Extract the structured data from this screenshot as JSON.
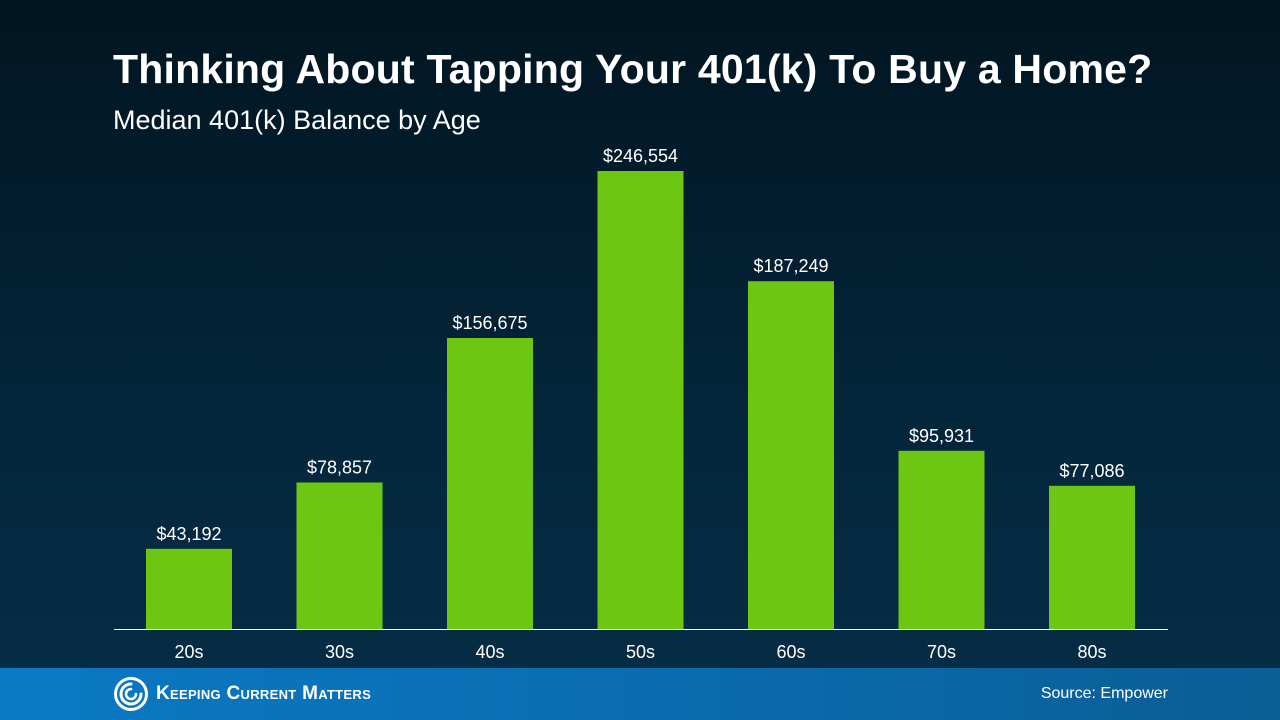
{
  "header": {
    "title": "Thinking About Tapping Your 401(k) To Buy a Home?",
    "subtitle": "Median 401(k) Balance by Age"
  },
  "chart_data": {
    "type": "bar",
    "title": "Thinking About Tapping Your 401(k) To Buy a Home?",
    "subtitle": "Median 401(k) Balance by Age",
    "xlabel": "",
    "ylabel": "",
    "categories": [
      "20s",
      "30s",
      "40s",
      "50s",
      "60s",
      "70s",
      "80s"
    ],
    "values": [
      43192,
      78857,
      156675,
      246554,
      187249,
      95931,
      77086
    ],
    "value_labels": [
      "$43,192",
      "$78,857",
      "$156,675",
      "$246,554",
      "$187,249",
      "$95,931",
      "$77,086"
    ],
    "ylim": [
      0,
      246554
    ],
    "grid": false,
    "legend": "none",
    "bar_color": "#6cc612",
    "axis_color": "#ffffff"
  },
  "footer": {
    "logo_text": "Keeping Current Matters",
    "logo_icon": "swirl-logo-icon",
    "source": "Source: Empower"
  }
}
